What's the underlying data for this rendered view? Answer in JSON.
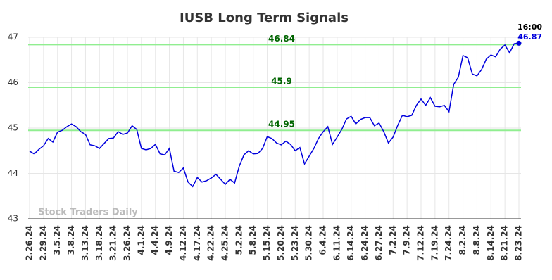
{
  "chart_data": {
    "type": "line",
    "title": "IUSB Long Term Signals",
    "watermark": "Stock Traders Daily",
    "categories": [
      "2.26.24",
      null,
      null,
      "2.29.24",
      null,
      null,
      "3.5.24",
      null,
      null,
      "3.8.24",
      null,
      null,
      "3.13.24",
      null,
      null,
      "3.18.24",
      null,
      null,
      "3.21.24",
      null,
      null,
      "3.26.24",
      null,
      null,
      "4.1.24",
      null,
      null,
      "4.4.24",
      null,
      null,
      "4.9.24",
      null,
      null,
      "4.12.24",
      null,
      null,
      "4.17.24",
      null,
      null,
      "4.22.24",
      null,
      null,
      "4.25.24",
      null,
      null,
      "5.2.24",
      null,
      null,
      "5.8.24",
      null,
      null,
      "5.15.24",
      null,
      null,
      "5.20.24",
      null,
      null,
      "5.23.24",
      null,
      null,
      "5.30.24",
      null,
      null,
      "6.4.24",
      null,
      null,
      "6.11.24",
      null,
      null,
      "6.14.24",
      null,
      null,
      "6.24.24",
      null,
      null,
      "6.27.24",
      null,
      null,
      "7.2.24",
      null,
      null,
      "7.9.24",
      null,
      null,
      "7.12.24",
      null,
      null,
      "7.19.24",
      null,
      null,
      "7.24.24",
      null,
      null,
      "8.2.24",
      null,
      null,
      "8.8.24",
      null,
      null,
      "8.14.24",
      null,
      null,
      "8.21.24",
      null,
      null,
      "8.23.24"
    ],
    "values": [
      44.49,
      44.43,
      44.53,
      44.61,
      44.77,
      44.69,
      44.91,
      44.95,
      45.03,
      45.09,
      45.03,
      44.92,
      44.86,
      44.63,
      44.61,
      44.55,
      44.66,
      44.77,
      44.78,
      44.92,
      44.86,
      44.89,
      45.05,
      44.97,
      44.55,
      44.52,
      44.55,
      44.64,
      44.43,
      44.41,
      44.55,
      44.05,
      44.02,
      44.12,
      43.81,
      43.71,
      43.91,
      43.81,
      43.84,
      43.9,
      43.98,
      43.87,
      43.76,
      43.87,
      43.79,
      44.16,
      44.41,
      44.5,
      44.43,
      44.44,
      44.55,
      44.81,
      44.77,
      44.67,
      44.63,
      44.71,
      44.64,
      44.5,
      44.57,
      44.21,
      44.38,
      44.55,
      44.77,
      44.92,
      45.03,
      44.64,
      44.8,
      44.97,
      45.2,
      45.26,
      45.09,
      45.19,
      45.23,
      45.23,
      45.05,
      45.11,
      44.92,
      44.67,
      44.8,
      45.06,
      45.28,
      45.25,
      45.28,
      45.5,
      45.64,
      45.5,
      45.67,
      45.48,
      45.47,
      45.5,
      45.36,
      45.96,
      46.12,
      46.6,
      46.55,
      46.19,
      46.15,
      46.29,
      46.52,
      46.61,
      46.57,
      46.74,
      46.83,
      46.66,
      46.86,
      46.87
    ],
    "color": "#0000dd",
    "signal_lines": [
      46.84,
      45.9,
      44.95
    ],
    "signal_color": "#90ee90",
    "signal_label_color": "#006400",
    "last_time": "16:00",
    "ylim": [
      43,
      47
    ],
    "yticks": [
      43,
      44,
      45,
      46,
      47
    ],
    "grid": true
  }
}
